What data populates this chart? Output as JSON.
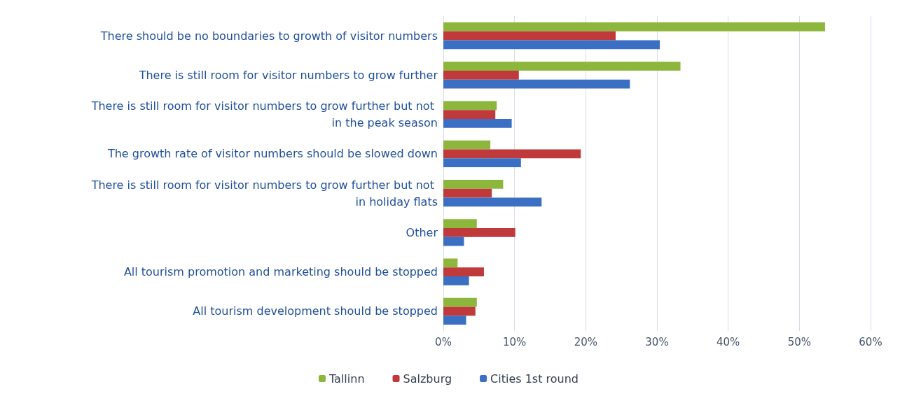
{
  "chart_data": {
    "type": "bar",
    "orientation": "horizontal",
    "categories": [
      "There should be no boundaries to growth of visitor numbers",
      "There is still room for visitor numbers to grow further",
      "There is still room for visitor numbers to grow further but not in the peak season",
      "The growth rate of visitor numbers should be slowed down",
      "There is still room for visitor numbers to grow further but not in holiday flats",
      "Other",
      "All tourism promotion and marketing should be stopped",
      "All tourism development should be stopped"
    ],
    "series": [
      {
        "name": "Tallinn",
        "color": "#8db63c",
        "values": [
          53.6,
          33.3,
          7.5,
          6.6,
          8.4,
          4.7,
          2.0,
          4.7
        ]
      },
      {
        "name": "Salzburg",
        "color": "#c0393b",
        "values": [
          24.2,
          10.6,
          7.3,
          19.3,
          6.8,
          10.1,
          5.7,
          4.5
        ]
      },
      {
        "name": "Cities 1st round",
        "color": "#3a6fc4",
        "values": [
          30.4,
          26.2,
          9.6,
          10.9,
          13.8,
          2.9,
          3.6,
          3.2
        ]
      }
    ],
    "xlim": [
      0,
      60
    ],
    "xticks": [
      {
        "value": 0,
        "label": "0%"
      },
      {
        "value": 10,
        "label": "10%"
      },
      {
        "value": 20,
        "label": "20%"
      },
      {
        "value": 30,
        "label": "30%"
      },
      {
        "value": 40,
        "label": "40%"
      },
      {
        "value": 50,
        "label": "50%"
      },
      {
        "value": 60,
        "label": "60%"
      }
    ],
    "grid": "x",
    "legend": "bottom"
  }
}
